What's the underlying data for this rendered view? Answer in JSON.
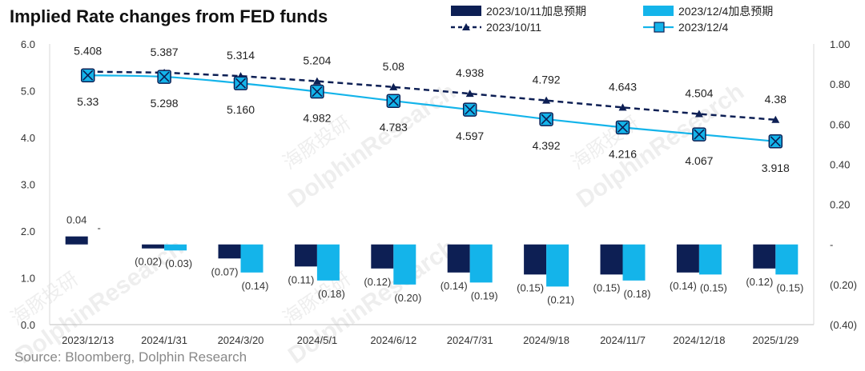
{
  "title": "Implied Rate changes from FED funds",
  "source": "Source: Bloomberg, Dolphin Research",
  "watermarks": [
    "海豚投研",
    "DolphinResearch"
  ],
  "colors": {
    "navy": "#0d1f54",
    "cyan": "#14b4ea"
  },
  "chart_data": {
    "type": "bar+line",
    "categories": [
      "2023/12/13",
      "2024/1/31",
      "2024/3/20",
      "2024/5/1",
      "2024/6/12",
      "2024/7/31",
      "2024/9/18",
      "2024/11/7",
      "2024/12/18",
      "2025/1/29"
    ],
    "left_axis": {
      "ylim": [
        0,
        6
      ],
      "ticks": [
        "0.0",
        "1.0",
        "2.0",
        "3.0",
        "4.0",
        "5.0",
        "6.0"
      ]
    },
    "right_axis": {
      "ylim": [
        -0.4,
        1.0
      ],
      "ticks": [
        "(0.40)",
        "(0.20)",
        "-",
        "0.20",
        "0.40",
        "0.60",
        "0.80",
        "1.00"
      ]
    },
    "line_series": [
      {
        "name": "2023/10/11",
        "style": "dashed-triangle",
        "values": [
          5.408,
          5.387,
          5.314,
          5.204,
          5.08,
          4.938,
          4.792,
          4.643,
          4.504,
          4.38
        ],
        "labels": [
          "5.408",
          "5.387",
          "5.314",
          "5.204",
          "5.08",
          "4.938",
          "4.792",
          "4.643",
          "4.504",
          "4.38"
        ]
      },
      {
        "name": "2023/12/4",
        "style": "solid-square",
        "values": [
          5.33,
          5.298,
          5.16,
          4.982,
          4.783,
          4.597,
          4.392,
          4.216,
          4.067,
          3.918
        ],
        "labels": [
          "5.33",
          "5.298",
          "5.160",
          "4.982",
          "4.783",
          "4.597",
          "4.392",
          "4.216",
          "4.067",
          "3.918"
        ]
      }
    ],
    "bar_series": [
      {
        "name": "2023/10/11加息预期",
        "values": [
          0.04,
          -0.02,
          -0.07,
          -0.11,
          -0.12,
          -0.14,
          -0.15,
          -0.15,
          -0.14,
          -0.12
        ],
        "labels": [
          "0.04",
          "(0.02)",
          "(0.07)",
          "(0.11)",
          "(0.12)",
          "(0.14)",
          "(0.15)",
          "(0.15)",
          "(0.14)",
          "(0.12)"
        ]
      },
      {
        "name": "2023/12/4加息预期",
        "values": [
          0,
          -0.03,
          -0.14,
          -0.18,
          -0.2,
          -0.19,
          -0.21,
          -0.18,
          -0.15,
          -0.15
        ],
        "labels": [
          "-",
          "(0.03)",
          "(0.14)",
          "(0.18)",
          "(0.20)",
          "(0.19)",
          "(0.21)",
          "(0.18)",
          "(0.15)",
          "(0.15)"
        ]
      }
    ],
    "legend": [
      "2023/10/11加息预期",
      "2023/12/4加息预期",
      "2023/10/11",
      "2023/12/4"
    ],
    "legend_position": "top-right"
  }
}
